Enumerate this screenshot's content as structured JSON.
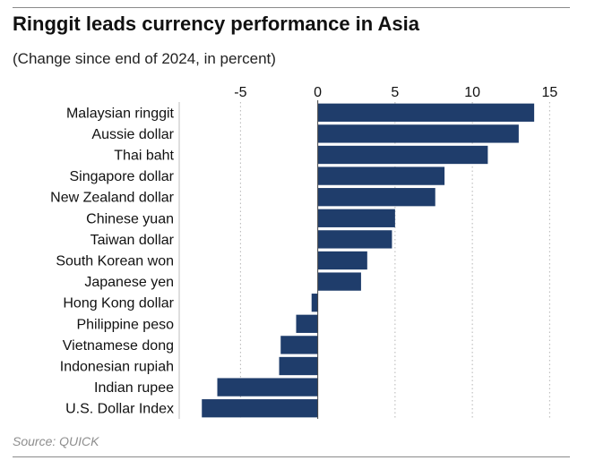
{
  "title": "Ringgit leads currency performance in Asia",
  "subtitle": "(Change since end of 2024, in percent)",
  "source": "Source: QUICK",
  "colors": {
    "bar": "#1f3d6b",
    "grid": "#b5b5b5",
    "axis": "#444444"
  },
  "chart_data": {
    "type": "bar",
    "orientation": "horizontal",
    "title": "Ringgit leads currency performance in Asia",
    "subtitle": "(Change since end of 2024, in percent)",
    "xlabel": "",
    "ylabel": "",
    "xlim": [
      -8.5,
      15.5
    ],
    "x_ticks": [
      -5,
      0,
      5,
      10,
      15
    ],
    "x_tick_labels": [
      "-5",
      "0",
      "5",
      "10",
      "15"
    ],
    "grid": "vertical dotted",
    "categories": [
      "Malaysian ringgit",
      "Aussie dollar",
      "Thai baht",
      "Singapore dollar",
      "New Zealand dollar",
      "Chinese yuan",
      "Taiwan dollar",
      "South Korean won",
      "Japanese yen",
      "Hong Kong dollar",
      "Philippine peso",
      "Vietnamese dong",
      "Indonesian rupiah",
      "Indian rupee",
      "U.S. Dollar Index"
    ],
    "values": [
      14.0,
      13.0,
      11.0,
      8.2,
      7.6,
      5.0,
      4.8,
      3.2,
      2.8,
      -0.4,
      -1.4,
      -2.4,
      -2.5,
      -6.5,
      -7.5
    ]
  }
}
